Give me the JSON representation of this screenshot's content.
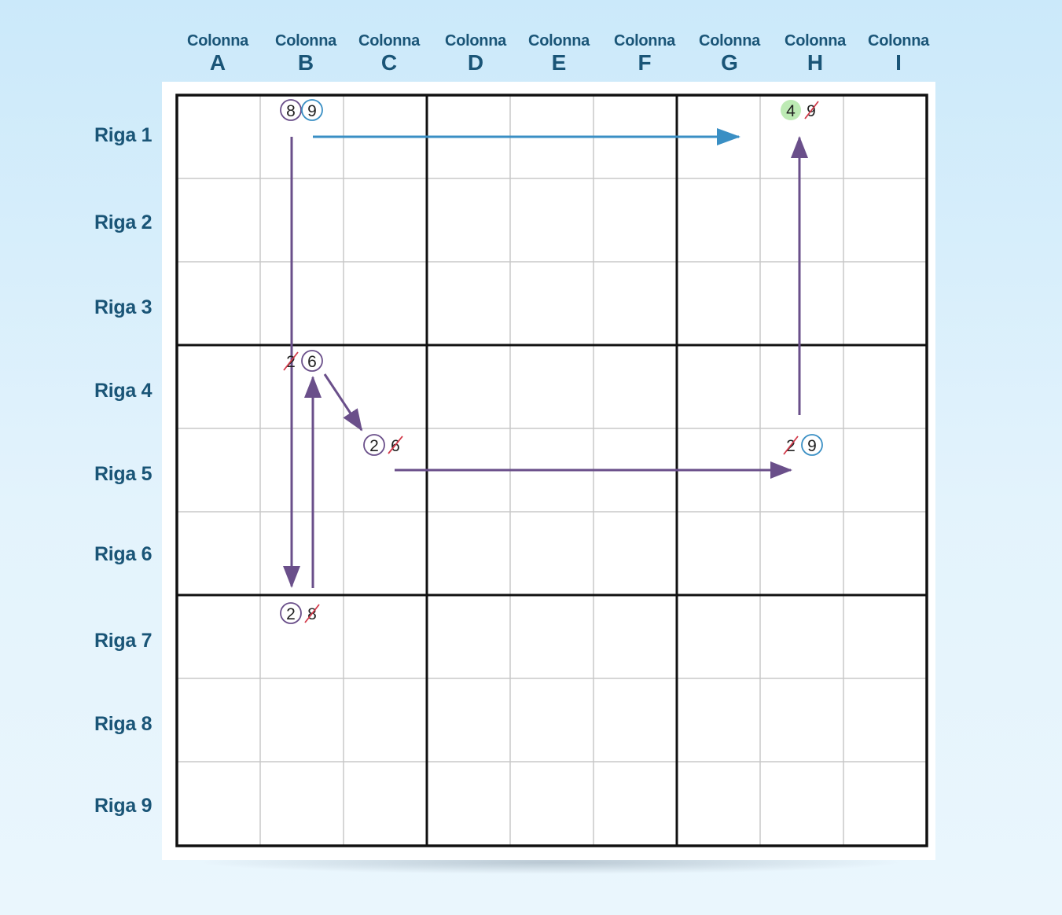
{
  "columns": [
    {
      "word": "Colonna",
      "letter": "A"
    },
    {
      "word": "Colonna",
      "letter": "B"
    },
    {
      "word": "Colonna",
      "letter": "C"
    },
    {
      "word": "Colonna",
      "letter": "D"
    },
    {
      "word": "Colonna",
      "letter": "E"
    },
    {
      "word": "Colonna",
      "letter": "F"
    },
    {
      "word": "Colonna",
      "letter": "G"
    },
    {
      "word": "Colonna",
      "letter": "H"
    },
    {
      "word": "Colonna",
      "letter": "I"
    }
  ],
  "rows": [
    "Riga 1",
    "Riga 2",
    "Riga 3",
    "Riga 4",
    "Riga 5",
    "Riga 6",
    "Riga 7",
    "Riga 8",
    "Riga 9"
  ],
  "candidates": {
    "b1": [
      {
        "digit": "8",
        "style": "circle-purple"
      },
      {
        "digit": "9",
        "style": "circle-blue"
      }
    ],
    "h1": [
      {
        "digit": "4",
        "style": "highlight-green"
      },
      {
        "digit": "9",
        "style": "struck"
      }
    ],
    "b4": [
      {
        "digit": "2",
        "style": "struck"
      },
      {
        "digit": "6",
        "style": "circle-purple"
      }
    ],
    "c5": [
      {
        "digit": "2",
        "style": "circle-purple"
      },
      {
        "digit": "6",
        "style": "struck"
      }
    ],
    "h5": [
      {
        "digit": "2",
        "style": "struck"
      },
      {
        "digit": "9",
        "style": "circle-blue"
      }
    ],
    "b7": [
      {
        "digit": "2",
        "style": "circle-purple"
      },
      {
        "digit": "8",
        "style": "struck"
      }
    ]
  },
  "colors": {
    "purple": "#6a4f8a",
    "blue": "#3a8fc4",
    "strike": "#d23a4a",
    "green": "#bdeab4",
    "label": "#1a5577",
    "thin_line": "#c8c8c8",
    "thick_line": "#111111"
  }
}
